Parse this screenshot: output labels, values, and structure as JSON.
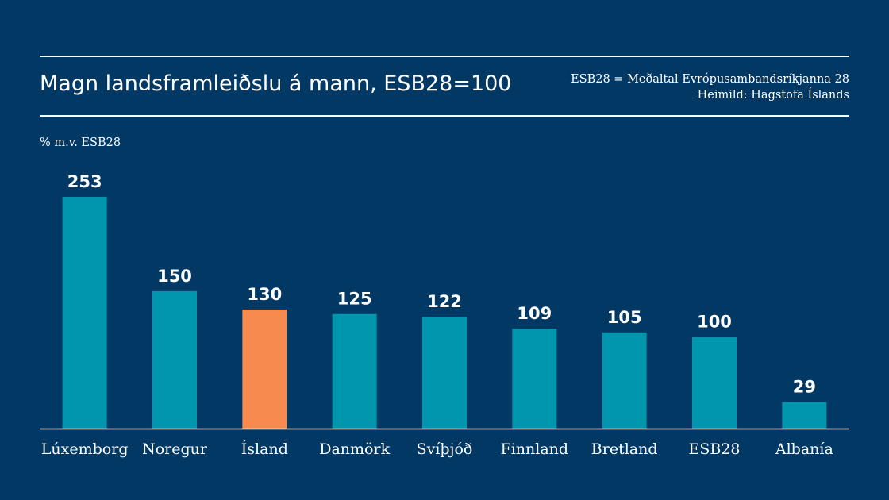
{
  "header": {
    "title": "Magn landsframleiðslu á mann, ESB28=100",
    "note_line1": "ESB28 = Meðaltal Evrópusambandsríkjanna 28",
    "note_line2": "Heimild: Hagstofa Íslands"
  },
  "colors": {
    "background": "#023864",
    "bar": "#0096ad",
    "highlight": "#f68a4f",
    "text": "#ffffff"
  },
  "chart_data": {
    "type": "bar",
    "title": "Magn landsframleiðslu á mann, ESB28=100",
    "xlabel": "",
    "ylabel": "% m.v. ESB28",
    "categories": [
      "Lúxemborg",
      "Noregur",
      "Ísland",
      "Danmörk",
      "Svíþjóð",
      "Finnland",
      "Bretland",
      "ESB28",
      "Albanía"
    ],
    "values": [
      253,
      150,
      130,
      125,
      122,
      109,
      105,
      100,
      29
    ],
    "highlight_category": "Ísland",
    "ylim": [
      0,
      253
    ],
    "grid": false,
    "data_labels": true
  }
}
